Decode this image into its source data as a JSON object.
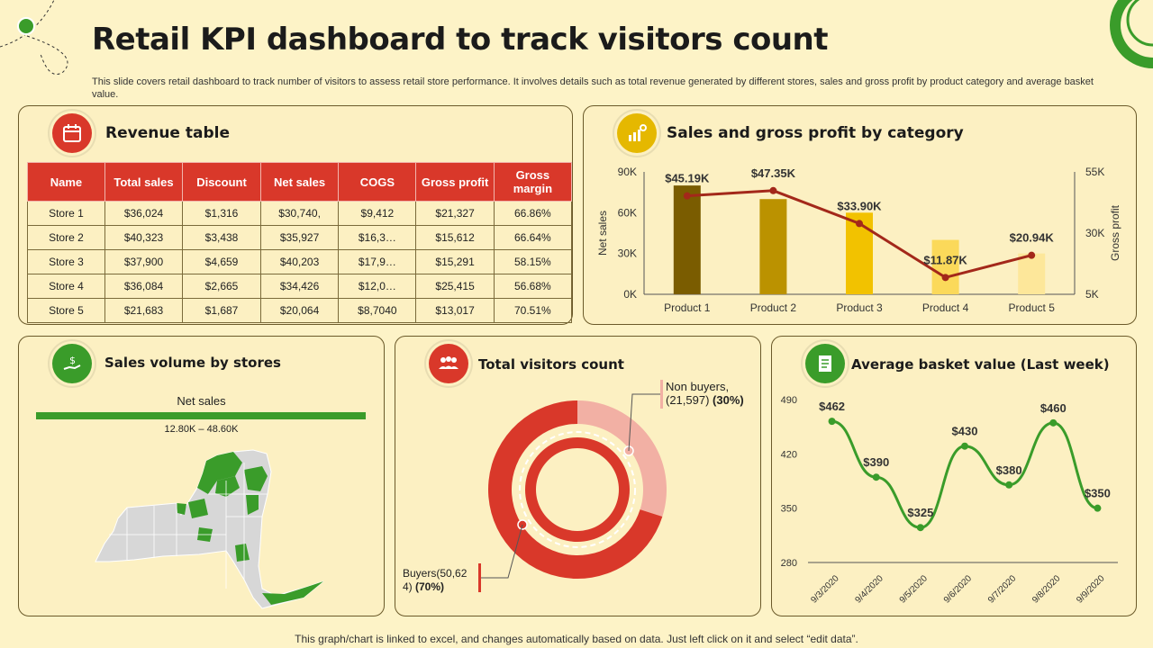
{
  "header": {
    "title": "Retail KPI dashboard to track visitors count",
    "subtitle": "This slide covers retail dashboard to track number of visitors to assess retail store performance. It involves details such as total revenue generated by different stores, sales and gross profit by product category and average basket value."
  },
  "footer": {
    "note": "This graph/chart is linked to excel, and changes automatically based on data. Just left click on it and select “edit data”."
  },
  "colors": {
    "red": "#d9382a",
    "green": "#3a9c2a",
    "gold": "#f2c200",
    "background": "#fdf3c7"
  },
  "revenue": {
    "title": "Revenue table",
    "icon": "calendar-icon",
    "headers": [
      "Name",
      "Total sales",
      "Discount",
      "Net sales",
      "COGS",
      "Gross profit",
      "Gross margin"
    ],
    "rows": [
      [
        "Store 1",
        "$36,024",
        "$1,316",
        "$30,740,",
        "$9,412",
        "$21,327",
        "66.86%"
      ],
      [
        "Store 2",
        "$40,323",
        "$3,438",
        "$35,927",
        "$16,3…",
        "$15,612",
        "66.64%"
      ],
      [
        "Store 3",
        "$37,900",
        "$4,659",
        "$40,203",
        "$17,9…",
        "$15,291",
        "58.15%"
      ],
      [
        "Store 4",
        "$36,084",
        "$2,665",
        "$34,426",
        "$12,0…",
        "$25,415",
        "56.68%"
      ],
      [
        "Store 5",
        "$21,683",
        "$1,687",
        "$20,064",
        "$8,7040",
        "$13,017",
        "70.51%"
      ]
    ]
  },
  "sales_volume": {
    "title": "Sales volume by stores",
    "icon": "money-hand-icon",
    "legend_title": "Net sales",
    "legend_range": "12.80K – 48.60K"
  },
  "visitors": {
    "title": "Total visitors count",
    "icon": "people-icon",
    "non_buyers_label": "Non buyers,",
    "non_buyers_value": "(21,597) ",
    "non_buyers_pct": "(30%)",
    "buyers_label": "Buyers(50,62",
    "buyers_value": "4) ",
    "buyers_pct": "(70%)"
  },
  "basket": {
    "title": "Average basket value (Last week)",
    "icon": "receipt-icon"
  },
  "sales_profit": {
    "title": "Sales and gross profit by category",
    "icon": "chart-coin-icon"
  },
  "chart_data": [
    {
      "type": "bar",
      "title": "Sales and gross profit by category",
      "categories": [
        "Product 1",
        "Product 2",
        "Product 3",
        "Product 4",
        "Product 5"
      ],
      "series": [
        {
          "name": "Net sales",
          "axis": "left",
          "values": [
            80000,
            70000,
            60000,
            40000,
            30000
          ],
          "colors": [
            "#7a5c00",
            "#bb9200",
            "#f2c200",
            "#fbd95a",
            "#fde79a"
          ]
        },
        {
          "name": "Gross profit",
          "type": "line",
          "axis": "right",
          "values": [
            45190,
            47350,
            33900,
            11870,
            20940
          ],
          "labels": [
            "$45.19K",
            "$47.35K",
            "$33.90K",
            "$11.87K",
            "$20.94K"
          ],
          "color": "#a3281a"
        }
      ],
      "ylabel": "Net sales",
      "y2label": "Gross profit",
      "ylim": [
        0,
        90000
      ],
      "y2lim": [
        5000,
        55000
      ],
      "yticks": [
        "0K",
        "30K",
        "60K",
        "90K"
      ],
      "yticks_values": [
        0,
        30000,
        60000,
        90000
      ],
      "y2ticks": [
        "5K",
        "30K",
        "55K"
      ],
      "y2ticks_values": [
        5000,
        30000,
        55000
      ]
    },
    {
      "type": "pie",
      "title": "Total visitors count",
      "categories": [
        "Buyers",
        "Non buyers"
      ],
      "values": [
        50624,
        21597
      ],
      "percent": [
        70,
        30
      ],
      "colors": [
        "#d9382a",
        "#f2b0a4"
      ]
    },
    {
      "type": "line",
      "title": "Average basket value (Last week)",
      "x": [
        "9/3/2020",
        "9/4/2020",
        "9/5/2020",
        "9/6/2020",
        "9/7/2020",
        "9/8/2020",
        "9/9/2020"
      ],
      "values": [
        462,
        390,
        325,
        430,
        380,
        460,
        350
      ],
      "labels": [
        "$462",
        "$390",
        "$325",
        "$430",
        "$380",
        "$460",
        "$350"
      ],
      "ylim": [
        280,
        490
      ],
      "yticks": [
        "280",
        "350",
        "420",
        "490"
      ],
      "yticks_values": [
        280,
        350,
        420,
        490
      ],
      "color": "#3a9c2a"
    }
  ]
}
